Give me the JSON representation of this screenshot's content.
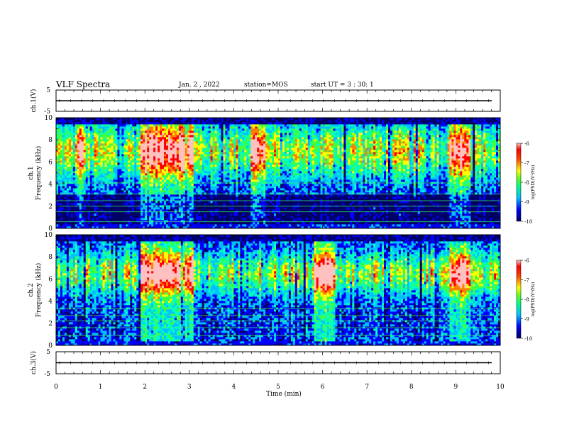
{
  "header": {
    "title": "VLF Spectra",
    "date": "Jan. 2 , 2022",
    "station": "station=MOS",
    "start_ut": "start UT =  3 : 30: 1"
  },
  "colormap": [
    "#000066",
    "#0000ff",
    "#00c0ff",
    "#00ffc0",
    "#40ff40",
    "#ffff00",
    "#ff8000",
    "#ff0000",
    "#ffc0c0"
  ],
  "chart_data": [
    {
      "type": "line",
      "ylabel": "ch.1(V)",
      "ylim": [
        -5,
        5
      ],
      "yticks": [
        "5",
        "-5"
      ],
      "x": [
        0,
        10
      ],
      "values": [
        0,
        0
      ]
    },
    {
      "type": "heatmap",
      "ylabel": "ch.1\nFrequency (kHz)",
      "ylim": [
        0,
        10
      ],
      "yticks": [
        "0",
        "2",
        "4",
        "6",
        "8",
        "10"
      ],
      "xlim": [
        0,
        10
      ],
      "colorbar": {
        "label": "log(PSD)(V²/Hz)",
        "range": [
          -10,
          -6
        ],
        "ticks": [
          "-6",
          "-7",
          "-8",
          "-9",
          "-10"
        ]
      },
      "bursts": [
        [
          1.9,
          3.1,
          8.8
        ],
        [
          0.5,
          0.6,
          8.5
        ],
        [
          4.4,
          4.7,
          7.5
        ],
        [
          8.85,
          9.35,
          8.8
        ]
      ]
    },
    {
      "type": "heatmap",
      "ylabel": "ch.2\nFrequency (kHz)",
      "ylim": [
        0,
        10
      ],
      "yticks": [
        "0",
        "2",
        "4",
        "6",
        "8",
        "10"
      ],
      "xlim": [
        0,
        10
      ],
      "colorbar": {
        "label": "log(PSD)(V²/Hz)",
        "range": [
          -10,
          -6
        ],
        "ticks": [
          "-6",
          "-7",
          "-8",
          "-9",
          "-10"
        ]
      },
      "bursts": [
        [
          1.9,
          3.1,
          8.0
        ],
        [
          5.8,
          6.3,
          7.5
        ],
        [
          8.85,
          9.35,
          8.0
        ]
      ]
    },
    {
      "type": "line",
      "ylabel": "ch.3(V)",
      "ylim": [
        -5,
        5
      ],
      "yticks": [
        "5",
        "-5"
      ],
      "x": [
        0,
        10
      ],
      "values": [
        0,
        0
      ]
    }
  ],
  "xaxis": {
    "label": "Time (min)",
    "ticks": [
      "0",
      "1",
      "2",
      "3",
      "4",
      "5",
      "6",
      "7",
      "8",
      "9",
      "10"
    ],
    "range": [
      0,
      10
    ]
  }
}
